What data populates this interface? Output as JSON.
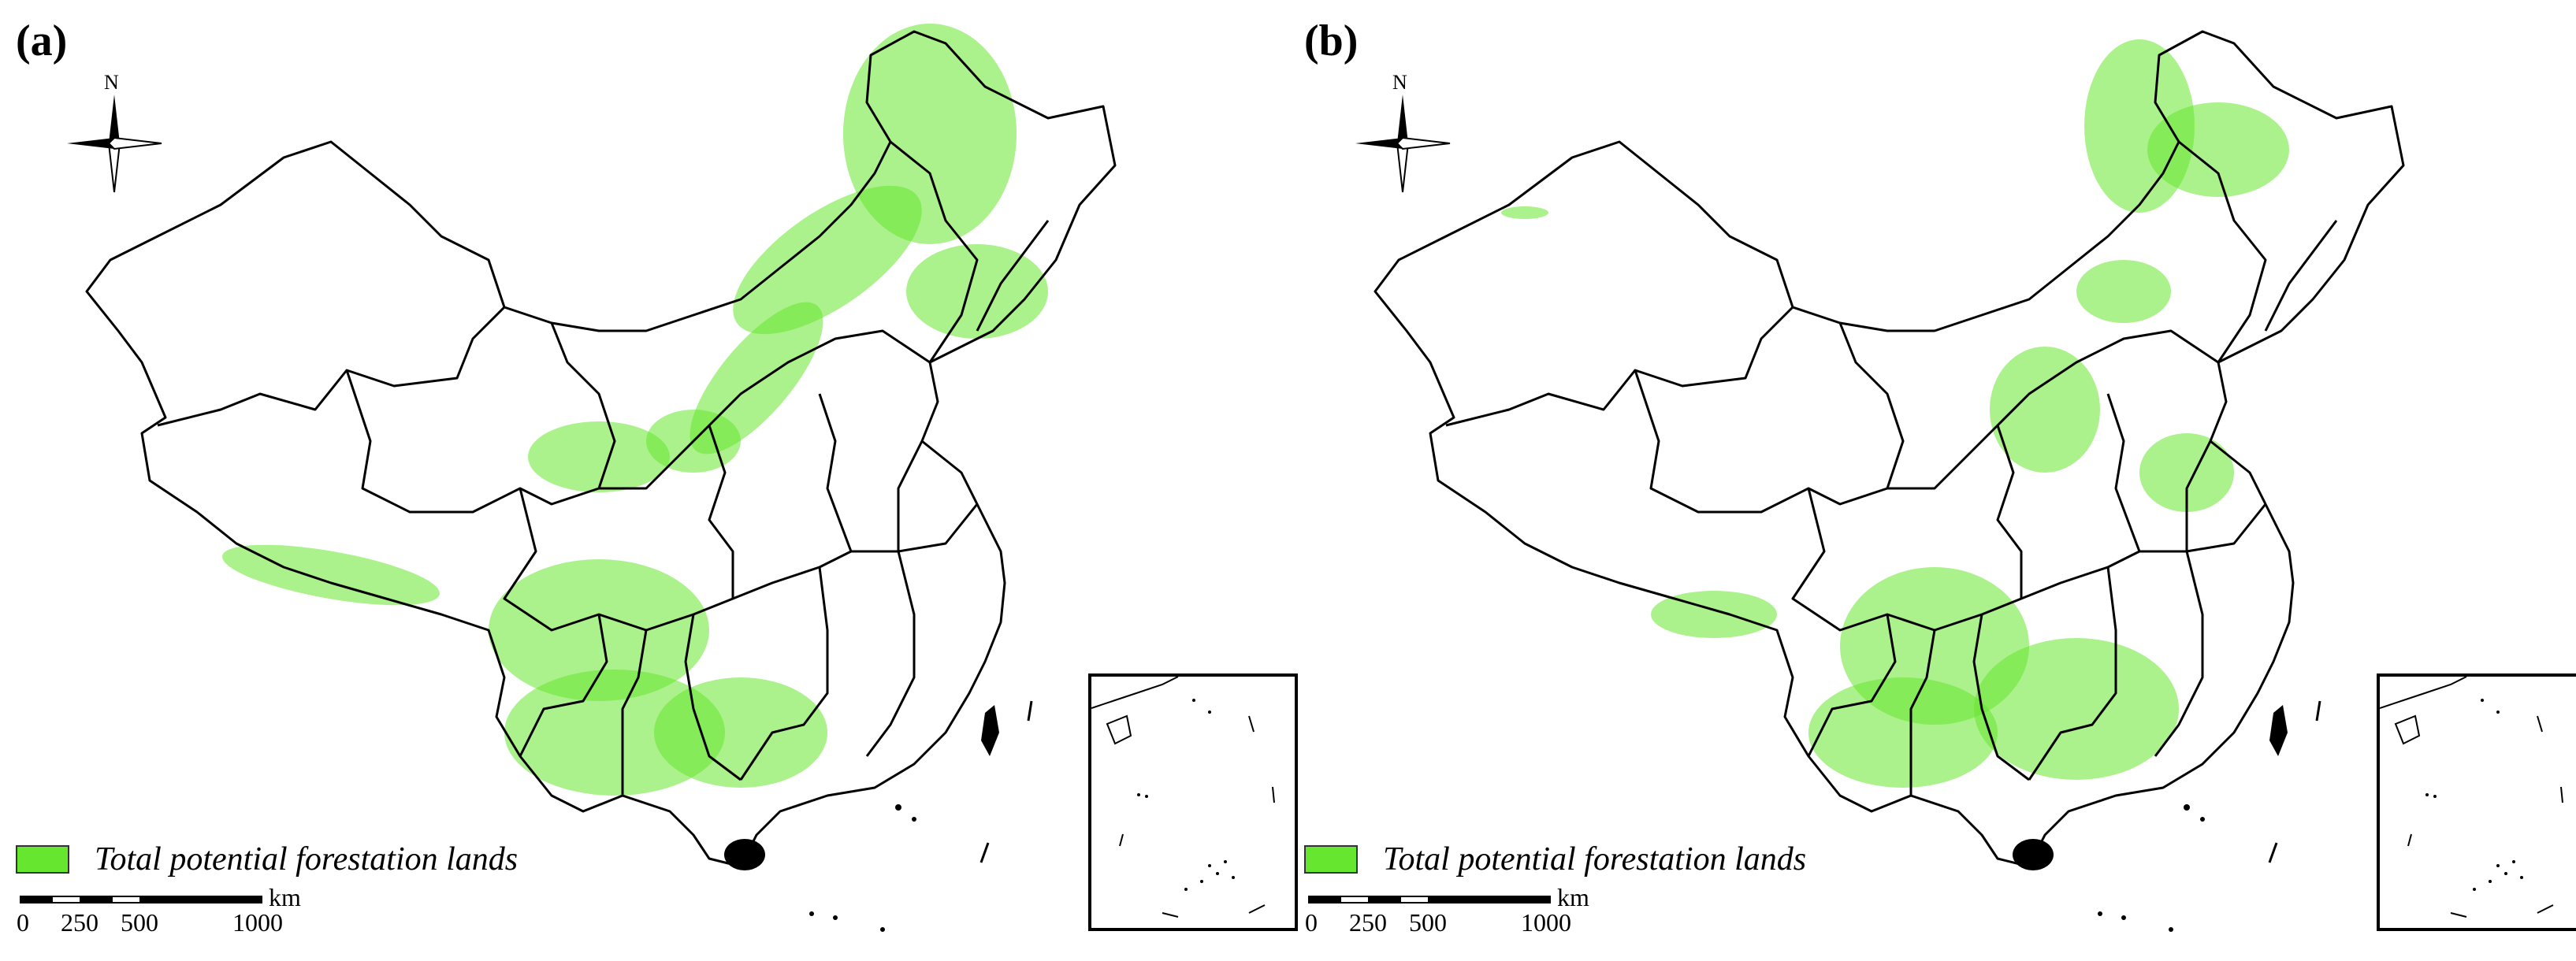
{
  "colors": {
    "forest": "#66e62e",
    "border": "#000000",
    "background": "#ffffff"
  },
  "compass": {
    "north_label": "N",
    "icon": "north-arrow-icon"
  },
  "panels": [
    {
      "label": "(a)",
      "legend": {
        "label": "Total potential forestation lands"
      },
      "scale": {
        "unit": "km",
        "ticks": [
          "0",
          "250",
          "500",
          "1000"
        ]
      }
    },
    {
      "label": "(b)",
      "legend": {
        "label": "Total potential forestation lands"
      },
      "scale": {
        "unit": "km",
        "ticks": [
          "0",
          "250",
          "500",
          "1000"
        ]
      }
    }
  ]
}
